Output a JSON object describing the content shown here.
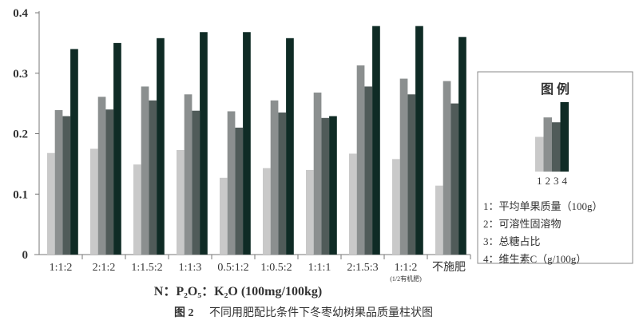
{
  "chart_data": {
    "type": "bar",
    "title": "",
    "caption_number": "图 2",
    "caption": "不同用肥配比条件下冬枣幼树果品质量柱状图",
    "xlabel": "N：P₂O₅：K₂O (100mg/100kg)",
    "ylabel": "",
    "ylim": [
      0,
      0.4
    ],
    "yticks": [
      "0",
      "0.1",
      "0.2",
      "0.3",
      "0.4"
    ],
    "grid": false,
    "categories": [
      "1:1:2",
      "2:1:2",
      "1:1.5:2",
      "1:1:3",
      "0.5:1:2",
      "1:0.5:2",
      "1:1:1",
      "2:1.5:3",
      "1:1:2",
      "不施肥"
    ],
    "category_note": "(1/2有机肥)",
    "series": [
      {
        "name": "平均单果质量（100g）",
        "values": [
          0.168,
          0.175,
          0.149,
          0.173,
          0.127,
          0.143,
          0.14,
          0.167,
          0.158,
          0.114
        ]
      },
      {
        "name": "可溶性固溶物",
        "values": [
          0.239,
          0.261,
          0.278,
          0.265,
          0.237,
          0.255,
          0.268,
          0.313,
          0.291,
          0.287
        ]
      },
      {
        "name": "总糖占比",
        "values": [
          0.229,
          0.24,
          0.255,
          0.238,
          0.21,
          0.235,
          0.226,
          0.278,
          0.265,
          0.25
        ]
      },
      {
        "name": "维生素C（g/100g）",
        "values": [
          0.34,
          0.35,
          0.358,
          0.368,
          0.368,
          0.358,
          0.229,
          0.378,
          0.378,
          0.36
        ]
      }
    ],
    "colors": [
      "#c9c9c9",
      "#8b8f8f",
      "#505b59",
      "#0f2b25"
    ],
    "legend": {
      "title": "图  例",
      "placement": "right",
      "sample_numbers": [
        "1",
        "2",
        "3",
        "4"
      ],
      "entries": [
        "1：平均单果质量（100g）",
        "2：可溶性固溶物",
        "3：总糖占比",
        "4：维生素C（g/100g）"
      ]
    }
  }
}
